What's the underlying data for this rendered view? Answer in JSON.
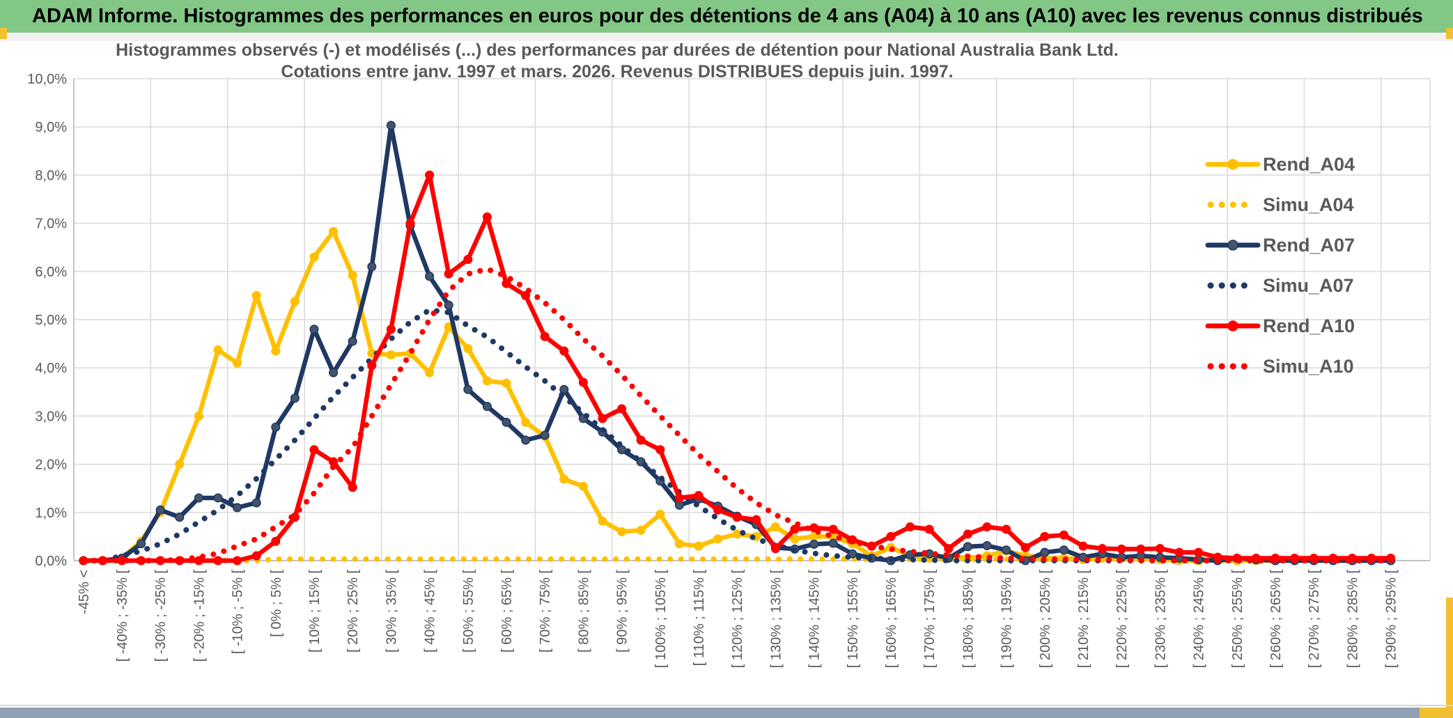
{
  "header": {
    "title": "ADAM Informe. Histogrammes des performances en euros pour des détentions de 4 ans (A04) à 10 ans (A10) avec les revenus connus distribués"
  },
  "chart_data": {
    "type": "line",
    "title_line1": "Histogrammes observés (-) et modélisés (...) des performances par durées de détention pour National Australia Bank Ltd.",
    "title_line2": "Cotations entre janv. 1997 et mars. 2026. Revenus DISTRIBUES depuis juin. 1997.",
    "ylim": [
      0,
      10
    ],
    "ytick_labels": [
      "0,0%",
      "1,0%",
      "2,0%",
      "3,0%",
      "4,0%",
      "5,0%",
      "6,0%",
      "7,0%",
      "8,0%",
      "9,0%",
      "10,0%"
    ],
    "grid": true,
    "legend_position": "right",
    "colors": {
      "gold": "#FFC000",
      "navy": "#1F3864",
      "navy_marker": "#44546A",
      "red": "#FF0000",
      "gridline": "#D9D9D9",
      "axis": "#BFBFBF",
      "text": "#595959",
      "header_green": "#82C785",
      "accent_yellow": "#F0C030",
      "footer_blue": "#92A0B3"
    },
    "categories": [
      "-45% <",
      "",
      "[ -40% ; -35% [",
      "",
      "[ -30% ; -25% [",
      "",
      "[ -20% ; -15% [",
      "",
      "[ -10% ; -5% [",
      "",
      "[ 0% ; 5% [",
      "",
      "[ 10% ; 15% [",
      "",
      "[ 20% ; 25% [",
      "",
      "[ 30% ; 35% [",
      "",
      "[ 40% ; 45% [",
      "",
      "[ 50% ; 55% [",
      "",
      "[ 60% ; 65% [",
      "",
      "[ 70% ; 75% [",
      "",
      "[ 80% ; 85% [",
      "",
      "[ 90% ; 95% [",
      "",
      "[ 100% ; 105% [",
      "",
      "[ 110% ; 115% [",
      "",
      "[ 120% ; 125% [",
      "",
      "[ 130% ; 135% [",
      "",
      "[ 140% ; 145% [",
      "",
      "[ 150% ; 155% [",
      "",
      "[ 160% ; 165% [",
      "",
      "[ 170% ; 175% [",
      "",
      "[ 180% ; 185% [",
      "",
      "[ 190% ; 195% [",
      "",
      "[ 200% ; 205% [",
      "",
      "[ 210% ; 215% [",
      "",
      "[ 220% ; 225% [",
      "",
      "[ 230% ; 235% [",
      "",
      "[ 240% ; 245% [",
      "",
      "[ 250% ; 255% [",
      "",
      "[ 260% ; 265% [",
      "",
      "[ 270% ; 275% [",
      "",
      "[ 280% ; 285% [",
      "",
      "[ 290% ; 295% ["
    ],
    "series": [
      {
        "name": "Rend_A04",
        "style": "solid",
        "marker": true,
        "color": "#FFC000",
        "marker_color": "#FFC000",
        "values": [
          0,
          0,
          0.05,
          0.4,
          1.0,
          2.0,
          3.0,
          4.37,
          4.1,
          5.5,
          4.35,
          5.38,
          6.3,
          6.83,
          5.92,
          4.3,
          4.27,
          4.3,
          3.9,
          4.85,
          4.4,
          3.73,
          3.68,
          2.87,
          2.58,
          1.69,
          1.54,
          0.82,
          0.6,
          0.63,
          0.96,
          0.35,
          0.3,
          0.45,
          0.55,
          0.5,
          0.7,
          0.45,
          0.5,
          0.5,
          0.35,
          0.1,
          0.27,
          0.1,
          0.05,
          0.1,
          0.05,
          0.1,
          0.2,
          0.1,
          0.05,
          0.05,
          0.02,
          0.05,
          0.05,
          0.05,
          0.02,
          0,
          0,
          0,
          0,
          0,
          0,
          0,
          0,
          0,
          0,
          0,
          0
        ]
      },
      {
        "name": "Simu_A04",
        "style": "dot",
        "marker": false,
        "color": "#FFC000",
        "marker_color": "#FFC000",
        "values": [
          0,
          0,
          0,
          0,
          0,
          0,
          0,
          0,
          0,
          0,
          0.03,
          0.03,
          0.03,
          0.03,
          0.03,
          0.03,
          0.03,
          0.03,
          0.03,
          0.03,
          0.03,
          0.03,
          0.03,
          0.03,
          0.03,
          0.03,
          0.03,
          0.03,
          0.03,
          0.03,
          0.03,
          0.03,
          0.03,
          0.03,
          0.03,
          0.03,
          0.03,
          0.03,
          0.03,
          0.03,
          0.03,
          0.03,
          0.03,
          0.03,
          0.03,
          0.03,
          0.03,
          0.03,
          0.03,
          0.03,
          0.03,
          0.03,
          0.03,
          0.03,
          0.03,
          0.03,
          0.03,
          0.03,
          0.03,
          0.03,
          0.03,
          0.03,
          0.03,
          0.03,
          0.03,
          0.03,
          0.03,
          0.03,
          0.03
        ]
      },
      {
        "name": "Rend_A07",
        "style": "solid",
        "marker": true,
        "color": "#1F3864",
        "marker_color": "#44546A",
        "values": [
          0,
          0,
          0.05,
          0.35,
          1.05,
          0.9,
          1.3,
          1.3,
          1.1,
          1.2,
          2.77,
          3.37,
          4.8,
          3.9,
          4.55,
          6.1,
          9.03,
          6.95,
          5.9,
          5.3,
          3.55,
          3.2,
          2.87,
          2.5,
          2.6,
          3.55,
          2.95,
          2.67,
          2.3,
          2.05,
          1.65,
          1.15,
          1.28,
          1.13,
          0.92,
          0.75,
          0.27,
          0.24,
          0.34,
          0.36,
          0.14,
          0.05,
          0,
          0.12,
          0.14,
          0.05,
          0.29,
          0.31,
          0.22,
          0,
          0.17,
          0.22,
          0.07,
          0.14,
          0.07,
          0.1,
          0.07,
          0.05,
          0.02,
          0,
          0.05,
          0.02,
          0,
          0,
          0,
          0,
          0,
          0,
          0
        ]
      },
      {
        "name": "Simu_A07",
        "style": "dot",
        "marker": false,
        "color": "#1F3864",
        "marker_color": "#1F3864",
        "values": [
          0,
          0,
          0.1,
          0.2,
          0.35,
          0.55,
          0.8,
          1.05,
          1.35,
          1.7,
          2.1,
          2.5,
          2.95,
          3.4,
          3.8,
          4.2,
          4.6,
          4.95,
          5.2,
          5.15,
          4.87,
          4.64,
          4.33,
          4.02,
          3.73,
          3.4,
          3.06,
          2.72,
          2.38,
          2.05,
          1.73,
          1.42,
          1.13,
          0.87,
          0.63,
          0.45,
          0.32,
          0.22,
          0.15,
          0.1,
          0.07,
          0.05,
          0.03,
          0.02,
          0.01,
          0,
          0,
          0,
          0,
          0,
          0,
          0,
          0,
          0,
          0,
          0,
          0,
          0,
          0,
          0,
          0,
          0,
          0,
          0,
          0,
          0,
          0,
          0,
          0
        ]
      },
      {
        "name": "Rend_A10",
        "style": "solid",
        "marker": true,
        "color": "#FF0000",
        "marker_color": "#FF0000",
        "values": [
          0,
          0,
          0,
          0,
          0,
          0,
          0,
          0,
          0,
          0.1,
          0.4,
          0.9,
          2.3,
          2.05,
          1.52,
          4.05,
          4.8,
          7.0,
          8.0,
          5.95,
          6.25,
          7.13,
          5.75,
          5.5,
          4.65,
          4.35,
          3.7,
          2.95,
          3.15,
          2.5,
          2.3,
          1.3,
          1.35,
          1.05,
          0.9,
          0.85,
          0.25,
          0.65,
          0.68,
          0.65,
          0.43,
          0.3,
          0.5,
          0.7,
          0.65,
          0.25,
          0.55,
          0.7,
          0.65,
          0.27,
          0.5,
          0.53,
          0.3,
          0.25,
          0.24,
          0.24,
          0.25,
          0.17,
          0.17,
          0.07,
          0.05,
          0.05,
          0.05,
          0.05,
          0.05,
          0.05,
          0.05,
          0.05,
          0.05
        ]
      },
      {
        "name": "Simu_A10",
        "style": "dot",
        "marker": false,
        "color": "#FF0000",
        "marker_color": "#FF0000",
        "values": [
          0,
          0,
          0,
          0,
          0,
          0.02,
          0.07,
          0.15,
          0.3,
          0.45,
          0.7,
          0.95,
          1.4,
          1.95,
          2.35,
          3.0,
          3.65,
          4.3,
          5.0,
          5.6,
          5.95,
          6.05,
          5.9,
          5.65,
          5.35,
          5.0,
          4.6,
          4.25,
          3.85,
          3.42,
          3.0,
          2.6,
          2.2,
          1.85,
          1.5,
          1.2,
          0.95,
          0.78,
          0.62,
          0.5,
          0.4,
          0.3,
          0.24,
          0.19,
          0.15,
          0.11,
          0.09,
          0.07,
          0.05,
          0.04,
          0.03,
          0.03,
          0.02,
          0.02,
          0.01,
          0,
          0,
          0,
          0,
          0,
          0,
          0,
          0,
          0,
          0,
          0,
          0,
          0,
          0
        ]
      }
    ]
  }
}
